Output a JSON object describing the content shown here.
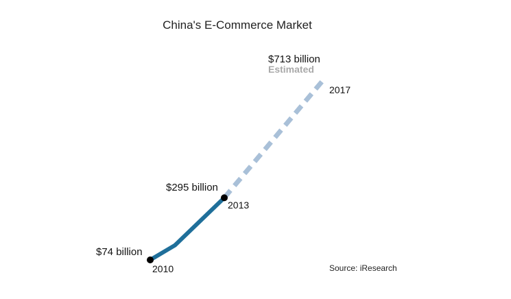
{
  "chart_data": {
    "type": "line",
    "title": "China's E-Commerce Market",
    "x": [
      2010,
      2011,
      2013,
      2017
    ],
    "series": [
      {
        "name": "",
        "status": "actual",
        "color": "#1f6f9a",
        "points": [
          {
            "x": 2010,
            "y": 74
          },
          {
            "x": 2011,
            "y": 126
          },
          {
            "x": 2013,
            "y": 295
          }
        ]
      },
      {
        "name": "",
        "status": "estimated",
        "color": "#a9c0d8",
        "points": [
          {
            "x": 2013,
            "y": 295
          },
          {
            "x": 2017,
            "y": 713
          }
        ]
      }
    ],
    "xlim": [
      2010,
      2017
    ],
    "ylim": [
      74,
      713
    ],
    "grid": false,
    "markers": {
      "color": "#000000",
      "at": [
        2010,
        2013
      ]
    },
    "annotations": [
      {
        "id": "value-2010",
        "text": "$74 billion"
      },
      {
        "id": "value-2013",
        "text": "$295 billion"
      },
      {
        "id": "value-2017",
        "text": "$713 billion"
      },
      {
        "id": "estimated",
        "text": "Estimated"
      },
      {
        "id": "year-2010",
        "text": "2010"
      },
      {
        "id": "year-2013",
        "text": "2013"
      },
      {
        "id": "year-2017",
        "text": "2017"
      }
    ],
    "source": "Source: iResearch"
  }
}
